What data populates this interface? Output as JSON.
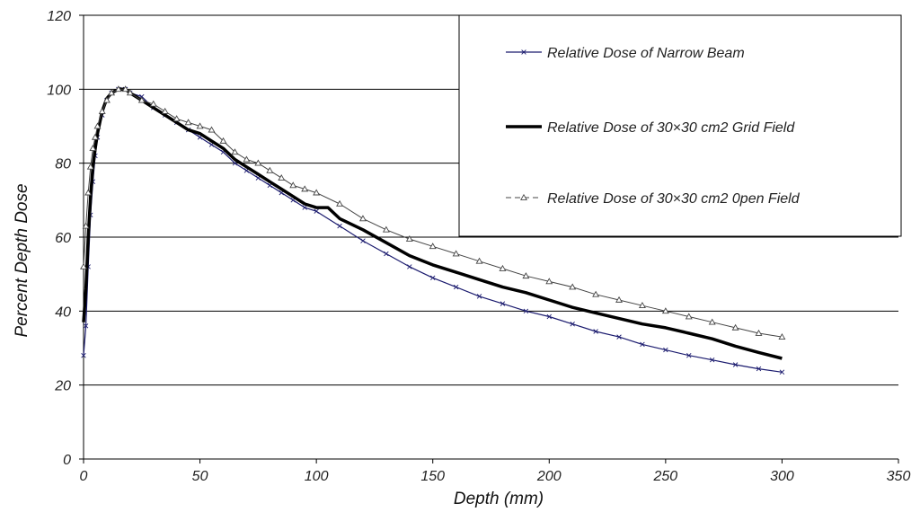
{
  "chart_data": {
    "type": "line",
    "title": "",
    "xlabel": "Depth (mm)",
    "ylabel": "Percent Depth Dose",
    "xlim": [
      0,
      350
    ],
    "ylim": [
      0,
      120
    ],
    "xticks": [
      0,
      50,
      100,
      150,
      200,
      250,
      300,
      350
    ],
    "yticks": [
      0,
      20,
      40,
      60,
      80,
      100,
      120
    ],
    "grid": "horizontal",
    "legend_position": "top-right",
    "series": [
      {
        "name": "Relative Dose   of  Narrow Beam",
        "color": "#1a1a6e",
        "marker": "cross",
        "x": [
          0,
          1,
          2,
          3,
          4,
          5,
          6,
          8,
          10,
          12,
          15,
          18,
          20,
          25,
          30,
          35,
          40,
          45,
          50,
          55,
          60,
          65,
          70,
          75,
          80,
          85,
          90,
          95,
          100,
          110,
          120,
          130,
          140,
          150,
          160,
          170,
          180,
          190,
          200,
          210,
          220,
          230,
          240,
          250,
          260,
          270,
          280,
          290,
          300
        ],
        "y": [
          28,
          36,
          52,
          66,
          75,
          82,
          87,
          93,
          97,
          99,
          100,
          100,
          99,
          98,
          95,
          93,
          91,
          89,
          87,
          85,
          83,
          80,
          78,
          76,
          74,
          72,
          70,
          68,
          67,
          63,
          59,
          55.5,
          52,
          49,
          46.5,
          44,
          42,
          40,
          38.5,
          36.5,
          34.5,
          33,
          31,
          29.5,
          28,
          26.8,
          25.5,
          24.4,
          23.5
        ]
      },
      {
        "name": "Relative Dose of 30×30 cm2 Grid Field",
        "color": "#000000",
        "marker": "none",
        "x": [
          0,
          1,
          2,
          3,
          4,
          5,
          6,
          8,
          10,
          12,
          15,
          18,
          20,
          25,
          30,
          35,
          40,
          45,
          50,
          55,
          60,
          65,
          70,
          75,
          80,
          85,
          90,
          95,
          100,
          105,
          110,
          120,
          130,
          140,
          150,
          160,
          170,
          180,
          190,
          200,
          210,
          220,
          230,
          240,
          250,
          260,
          270,
          280,
          290,
          300
        ],
        "y": [
          37,
          46,
          60,
          71,
          79,
          84,
          88,
          94,
          97.5,
          99,
          100,
          100,
          99,
          97,
          95,
          93,
          91,
          89,
          88,
          86,
          84,
          81,
          79,
          77,
          75,
          73,
          71,
          69,
          68,
          68,
          65,
          62,
          58.5,
          55,
          52.5,
          50.5,
          48.5,
          46.5,
          45,
          43,
          41,
          39.5,
          38,
          36.5,
          35.5,
          34,
          32.5,
          30.5,
          28.8,
          27.2
        ]
      },
      {
        "name": "Relative Dose of 30×30 cm2  0pen Field",
        "color": "#444444",
        "marker": "triangle",
        "x": [
          0,
          1,
          2,
          3,
          4,
          5,
          6,
          8,
          10,
          12,
          15,
          18,
          20,
          25,
          30,
          35,
          40,
          45,
          50,
          55,
          60,
          65,
          70,
          75,
          80,
          85,
          90,
          95,
          100,
          110,
          120,
          130,
          140,
          150,
          160,
          170,
          180,
          190,
          200,
          210,
          220,
          230,
          240,
          250,
          260,
          270,
          280,
          290,
          300
        ],
        "y": [
          52,
          63,
          72,
          79,
          84,
          87,
          90,
          94,
          97,
          99,
          100,
          100,
          99,
          97,
          96,
          94,
          92,
          91,
          90,
          89,
          86,
          83,
          81,
          80,
          78,
          76,
          74,
          73,
          72,
          69,
          65,
          62,
          59.5,
          57.5,
          55.5,
          53.5,
          51.5,
          49.5,
          48,
          46.5,
          44.5,
          43,
          41.5,
          40,
          38.5,
          37,
          35.5,
          34,
          33
        ]
      }
    ]
  }
}
